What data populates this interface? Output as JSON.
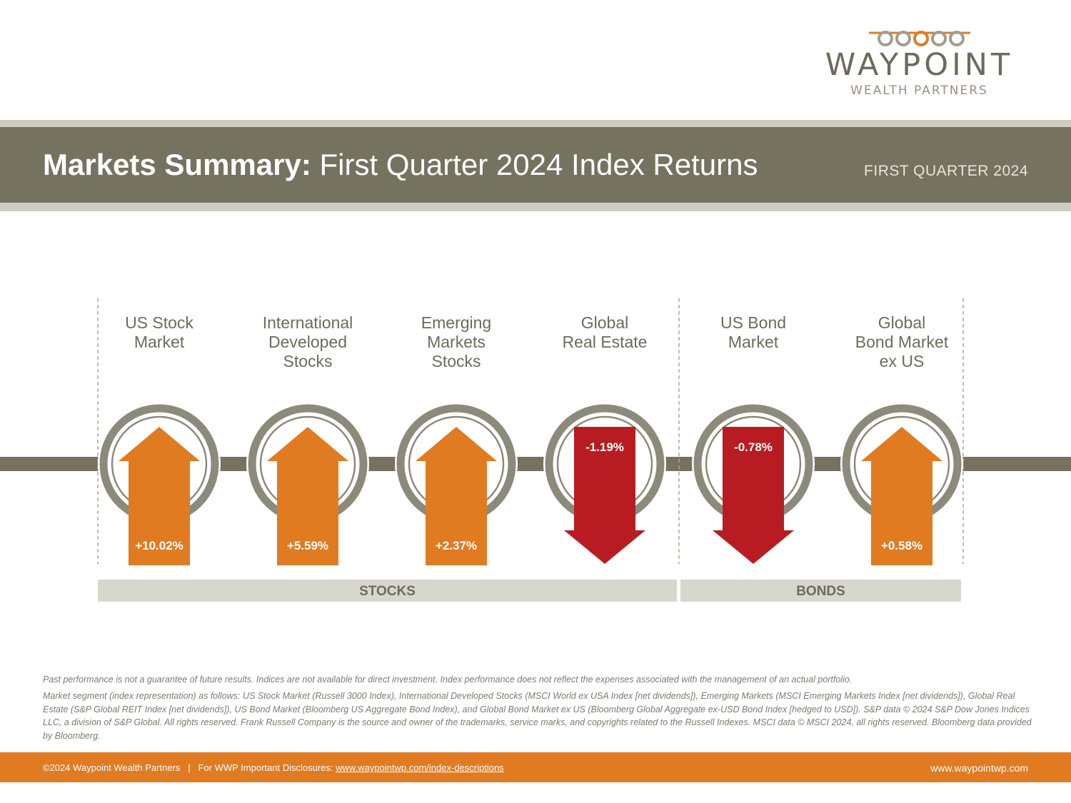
{
  "logo": {
    "word": "WAYPOINT",
    "sub": "WEALTH PARTNERS"
  },
  "header": {
    "title_bold": "Markets Summary:",
    "title_rest": "First Quarter 2024 Index Returns",
    "period": "FIRST QUARTER 2024"
  },
  "chart_data": {
    "type": "bar",
    "categories": [
      [
        "US Stock",
        "Market"
      ],
      [
        "International",
        "Developed",
        "Stocks"
      ],
      [
        "Emerging",
        "Markets",
        "Stocks"
      ],
      [
        "Global",
        "Real Estate"
      ],
      [
        "US Bond",
        "Market"
      ],
      [
        "Global",
        "Bond Market",
        "ex US"
      ]
    ],
    "values": [
      10.02,
      5.59,
      2.37,
      -1.19,
      -0.78,
      0.58
    ],
    "labels": [
      "+10.02%",
      "+5.59%",
      "+2.37%",
      "-1.19%",
      "-0.78%",
      "+0.58%"
    ],
    "groups": [
      {
        "name": "STOCKS",
        "count": 4
      },
      {
        "name": "BONDS",
        "count": 2
      }
    ],
    "colors": {
      "positive": "#e07b22",
      "negative": "#b81c22",
      "circle": "#8c8a7a",
      "line": "#75725f",
      "group_bar": "#d8d7cd"
    }
  },
  "footnote": {
    "line1": "Past performance is not a guarantee of future results. Indices are not available for direct investment. Index performance does not reflect the expenses associated with the management of an actual portfolio.",
    "line2": "Market segment (index representation) as follows: US Stock Market (Russell 3000 Index), International Developed Stocks (MSCI World ex USA Index [net dividends]), Emerging Markets (MSCI Emerging Markets Index [net dividends]), Global Real Estate (S&P Global REIT Index [net dividends]), US Bond Market (Bloomberg US Aggregate Bond Index), and Global Bond Market ex US (Bloomberg Global Aggregate ex-USD Bond Index [hedged to USD]). S&P data © 2024 S&P Dow Jones Indices LLC, a division of S&P Global. All rights reserved. Frank Russell Company is the source and owner of the trademarks, service marks, and copyrights related to the Russell Indexes. MSCI data © MSCI 2024, all rights reserved. Bloomberg data provided by Bloomberg."
  },
  "footer": {
    "copyright": "©2024 Waypoint Wealth Partners",
    "separator": "|",
    "disclosure": "For WWP Important Disclosures:",
    "disclosure_link": "www.waypointwp.com/index-descriptions",
    "website": "www.waypointwp.com"
  }
}
